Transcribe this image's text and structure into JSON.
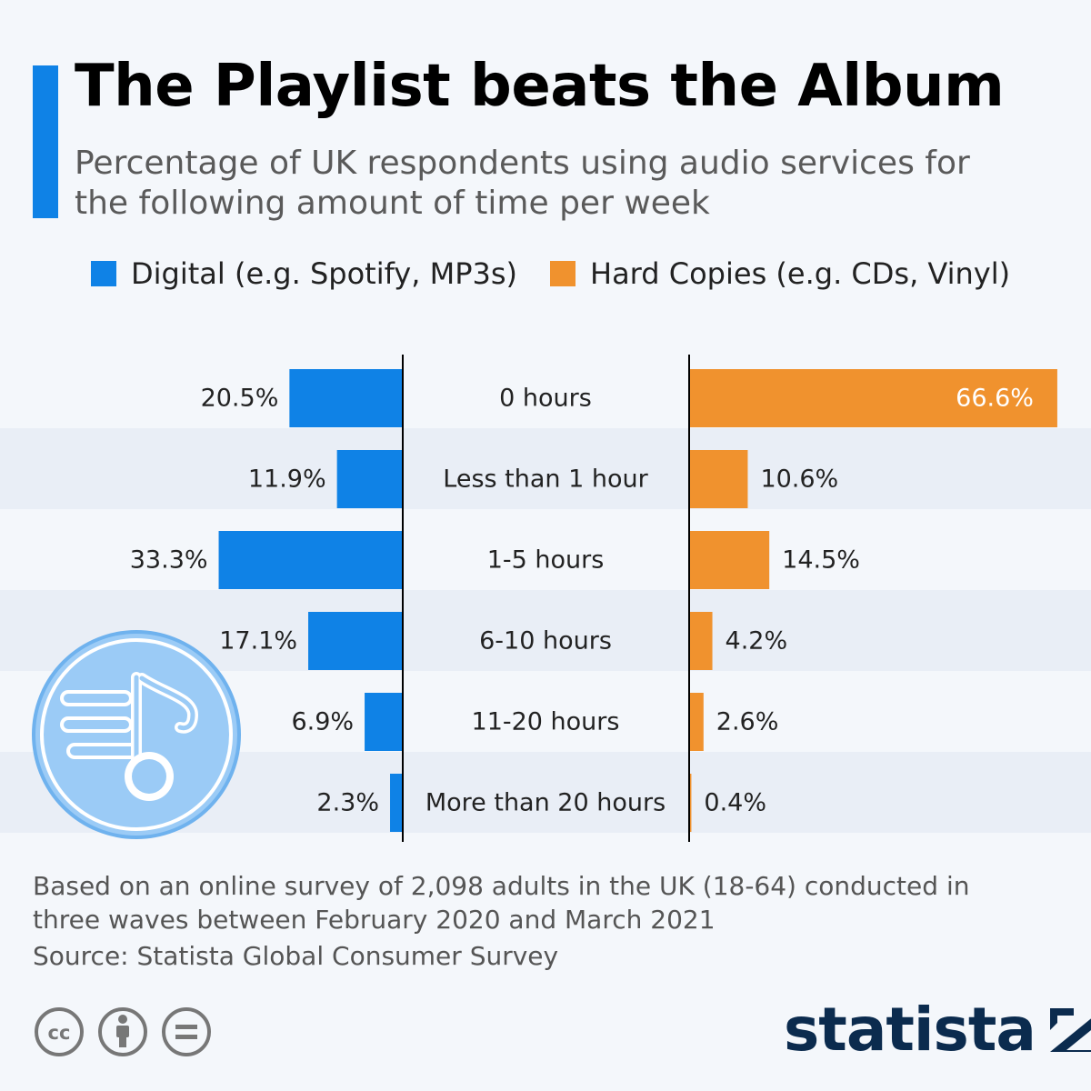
{
  "header": {
    "title": "The Playlist beats the Album",
    "subtitle": "Percentage of UK respondents using audio services for the following amount of time per week"
  },
  "legend": {
    "digital": "Digital (e.g. Spotify, MP3s)",
    "hard": "Hard Copies (e.g. CDs, Vinyl)"
  },
  "colors": {
    "digital": "#0f82e6",
    "hard": "#f0922e",
    "accent": "#0f82e6",
    "brand": "#0b2b4e"
  },
  "chart_data": {
    "type": "bar",
    "categories": [
      "0 hours",
      "Less than 1 hour",
      "1-5 hours",
      "6-10 hours",
      "11-20 hours",
      "More than 20 hours"
    ],
    "series": [
      {
        "name": "Digital (e.g. Spotify, MP3s)",
        "values": [
          20.5,
          11.9,
          33.3,
          17.1,
          6.9,
          2.3
        ],
        "labels": [
          "20.5%",
          "11.9%",
          "33.3%",
          "17.1%",
          "6.9%",
          "2.3%"
        ]
      },
      {
        "name": "Hard Copies (e.g. CDs, Vinyl)",
        "values": [
          66.6,
          10.6,
          14.5,
          4.2,
          2.6,
          0.4
        ],
        "labels": [
          "66.6%",
          "10.6%",
          "14.5%",
          "4.2%",
          "2.6%",
          "0.4%"
        ]
      }
    ],
    "title": "The Playlist beats the Album",
    "xlabel": "",
    "ylabel": "",
    "grid": false,
    "legend_position": "top"
  },
  "footer": {
    "note": "Based on an online survey of 2,098 adults in the UK (18-64) conducted in three waves between February 2020 and March 2021",
    "source": "Source: Statista Global Consumer Survey",
    "brand": "statista"
  },
  "icons": {
    "music": "music-note-icon",
    "license": [
      "creative-commons-icon",
      "attribution-icon",
      "no-derivatives-icon"
    ],
    "brand_mark": "statista-logo-icon"
  }
}
